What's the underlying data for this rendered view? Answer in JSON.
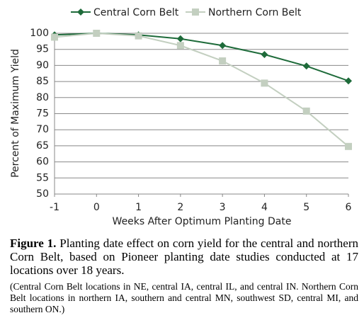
{
  "chart_data": {
    "type": "line",
    "x_label": "Weeks After Optimum Planting Date",
    "y_label": "Percent of Maximum Yield",
    "x": [
      -1,
      0,
      1,
      2,
      3,
      4,
      5,
      6
    ],
    "series": [
      {
        "name": "Central Corn Belt",
        "color": "#1e6b3a",
        "marker": "diamond",
        "values": [
          99.5,
          100,
          99.5,
          98.3,
          96.2,
          93.4,
          89.8,
          85.2
        ]
      },
      {
        "name": "Northern Corn Belt",
        "color": "#c3cfc0",
        "marker": "square",
        "values": [
          98.8,
          100,
          99.2,
          96.2,
          91.4,
          84.5,
          75.8,
          64.8
        ]
      }
    ],
    "xlim": [
      -1,
      6
    ],
    "xticks": [
      -1,
      0,
      1,
      2,
      3,
      4,
      5,
      6
    ],
    "ylim": [
      50,
      100
    ],
    "yticks": [
      50,
      55,
      60,
      65,
      70,
      75,
      80,
      85,
      90,
      95,
      100
    ],
    "grid": true,
    "legend": "top"
  },
  "caption": {
    "label": "Figure 1.",
    "text": "Planting date effect on corn yield for the central and northern Corn Belt, based on Pioneer planting date studies conducted at 17 locations over 18 years.",
    "note": "(Central Corn Belt locations in NE, central IA, central IL, and central IN. Northern Corn Belt locations in northern IA, southern and central MN, southwest SD, central MI, and southern ON.)"
  }
}
